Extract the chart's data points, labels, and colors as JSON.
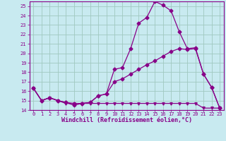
{
  "xlabel": "Windchill (Refroidissement éolien,°C)",
  "bg_color": "#c8eaf0",
  "grid_color": "#a0c8c0",
  "line_color": "#880088",
  "xlim_min": -0.5,
  "xlim_max": 23.5,
  "ylim_min": 14,
  "ylim_max": 25.5,
  "xticks": [
    0,
    1,
    2,
    3,
    4,
    5,
    6,
    7,
    8,
    9,
    10,
    11,
    12,
    13,
    14,
    15,
    16,
    17,
    18,
    19,
    20,
    21,
    22,
    23
  ],
  "yticks": [
    14,
    15,
    16,
    17,
    18,
    19,
    20,
    21,
    22,
    23,
    24,
    25
  ],
  "series1_x": [
    0,
    1,
    2,
    3,
    4,
    5,
    6,
    7,
    8,
    9,
    10,
    11,
    12,
    13,
    14,
    15,
    16,
    17,
    18,
    19,
    20,
    21,
    22,
    23
  ],
  "series1_y": [
    16.3,
    15.0,
    15.3,
    15.0,
    14.8,
    14.5,
    14.7,
    14.8,
    15.5,
    15.7,
    18.3,
    18.5,
    20.5,
    23.2,
    23.8,
    25.5,
    25.1,
    24.5,
    22.3,
    20.5,
    20.6,
    17.8,
    16.4,
    14.2
  ],
  "series2_x": [
    0,
    1,
    2,
    3,
    4,
    5,
    6,
    7,
    8,
    9,
    10,
    11,
    12,
    13,
    14,
    15,
    16,
    17,
    18,
    19,
    20,
    21,
    22,
    23
  ],
  "series2_y": [
    16.3,
    15.0,
    15.3,
    15.0,
    14.8,
    14.7,
    14.7,
    14.8,
    15.5,
    15.7,
    17.0,
    17.3,
    17.8,
    18.3,
    18.8,
    19.2,
    19.7,
    20.2,
    20.5,
    20.4,
    20.5,
    17.8,
    16.4,
    14.2
  ],
  "series3_x": [
    0,
    1,
    2,
    3,
    4,
    5,
    6,
    7,
    8,
    9,
    10,
    11,
    12,
    13,
    14,
    15,
    16,
    17,
    18,
    19,
    20,
    21,
    22,
    23
  ],
  "series3_y": [
    16.3,
    15.0,
    15.3,
    15.0,
    14.7,
    14.7,
    14.7,
    14.7,
    14.7,
    14.7,
    14.7,
    14.7,
    14.7,
    14.7,
    14.7,
    14.7,
    14.7,
    14.7,
    14.7,
    14.7,
    14.7,
    14.2,
    14.2,
    14.2
  ],
  "xlabel_fontsize": 6.0,
  "tick_fontsize": 5.0,
  "marker_size": 2.5,
  "line_width": 0.9
}
